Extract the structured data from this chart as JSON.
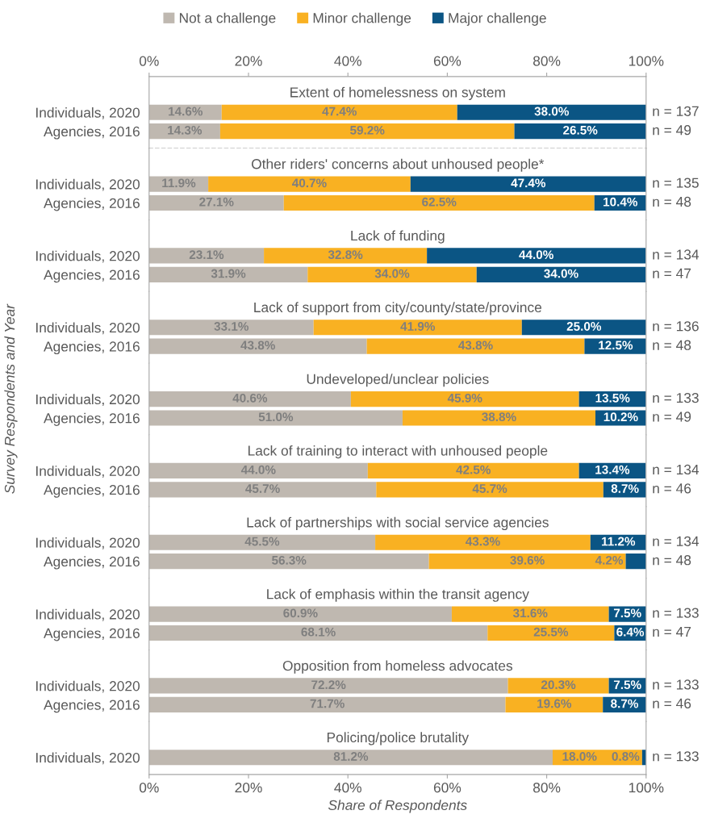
{
  "chart_data": [
    {
      "type": "bar",
      "orientation": "horizontal",
      "stacked": true,
      "title": "Extent of homelessness on system",
      "categories": [
        "Individuals, 2020",
        "Agencies, 2016"
      ],
      "xlim": [
        0,
        100
      ],
      "x2lim": [
        0,
        100
      ],
      "x2ticks": [
        {
          "value": 0,
          "label": "0%"
        },
        {
          "value": 20,
          "label": "20%"
        },
        {
          "value": 40,
          "label": "40%"
        },
        {
          "value": 60,
          "label": "60%"
        },
        {
          "value": 80,
          "label": "80%"
        },
        {
          "value": 100,
          "label": "100%"
        }
      ],
      "tick_labels": "y",
      "legend": "top",
      "annotations": [
        "n = 137",
        "n = 49"
      ],
      "series": [
        {
          "name": "Not a challenge",
          "color": "#bfb8b0",
          "values": [
            14.6,
            14.3
          ],
          "value_labels": [
            "14.6%",
            "14.3%"
          ]
        },
        {
          "name": "Minor challenge",
          "color": "#f9b122",
          "values": [
            47.4,
            59.2
          ],
          "value_labels": [
            "47.4%",
            "59.2%"
          ]
        },
        {
          "name": "Major challenge",
          "color": "#0b5584",
          "values": [
            38.0,
            26.5
          ],
          "value_labels": [
            "38.0%",
            "26.5%"
          ]
        }
      ]
    },
    {
      "type": "bar",
      "orientation": "horizontal",
      "stacked": true,
      "title": "Other riders' concerns about unhoused people*",
      "categories": [
        "Individuals, 2020",
        "Agencies, 2016"
      ],
      "xlim": [
        0,
        100
      ],
      "tick_labels": "y",
      "annotations": [
        "n = 135",
        "n = 48"
      ],
      "series": [
        {
          "color": "#bfb8b0",
          "values": [
            11.9,
            27.1
          ],
          "value_labels": [
            "11.9%",
            "27.1%"
          ]
        },
        {
          "color": "#f9b122",
          "values": [
            40.7,
            62.5
          ],
          "value_labels": [
            "40.7%",
            "62.5%"
          ]
        },
        {
          "color": "#0b5584",
          "values": [
            47.4,
            10.4
          ],
          "value_labels": [
            "47.4%",
            "10.4%"
          ]
        }
      ]
    },
    {
      "type": "bar",
      "orientation": "horizontal",
      "stacked": true,
      "title": "Lack of funding",
      "categories": [
        "Individuals, 2020",
        "Agencies, 2016"
      ],
      "xlim": [
        0,
        100
      ],
      "tick_labels": "y",
      "annotations": [
        "n = 134",
        "n = 47"
      ],
      "series": [
        {
          "color": "#bfb8b0",
          "values": [
            23.1,
            31.9
          ],
          "value_labels": [
            "23.1%",
            "31.9%"
          ]
        },
        {
          "color": "#f9b122",
          "values": [
            32.8,
            34.0
          ],
          "value_labels": [
            "32.8%",
            "34.0%"
          ]
        },
        {
          "color": "#0b5584",
          "values": [
            44.0,
            34.0
          ],
          "value_labels": [
            "44.0%",
            "34.0%"
          ]
        }
      ]
    },
    {
      "type": "bar",
      "orientation": "horizontal",
      "stacked": true,
      "title": "Lack of support from city/county/state/province",
      "categories": [
        "Individuals, 2020",
        "Agencies, 2016"
      ],
      "xlim": [
        0,
        100
      ],
      "tick_labels": "y",
      "annotations": [
        "n = 136",
        "n = 48"
      ],
      "series": [
        {
          "color": "#bfb8b0",
          "values": [
            33.1,
            43.8
          ],
          "value_labels": [
            "33.1%",
            "43.8%"
          ]
        },
        {
          "color": "#f9b122",
          "values": [
            41.9,
            43.8
          ],
          "value_labels": [
            "41.9%",
            "43.8%"
          ]
        },
        {
          "color": "#0b5584",
          "values": [
            25.0,
            12.5
          ],
          "value_labels": [
            "25.0%",
            "12.5%"
          ]
        }
      ]
    },
    {
      "type": "bar",
      "orientation": "horizontal",
      "stacked": true,
      "title": "Undeveloped/unclear policies",
      "ylabel": "Survey Respondents and Year",
      "categories": [
        "Individuals, 2020",
        "Agencies, 2016"
      ],
      "xlim": [
        0,
        100
      ],
      "tick_labels": "y",
      "annotations": [
        "n = 133",
        "n = 49"
      ],
      "series": [
        {
          "color": "#bfb8b0",
          "values": [
            40.6,
            51.0
          ],
          "value_labels": [
            "40.6%",
            "51.0%"
          ]
        },
        {
          "color": "#f9b122",
          "values": [
            45.9,
            38.8
          ],
          "value_labels": [
            "45.9%",
            "38.8%"
          ]
        },
        {
          "color": "#0b5584",
          "values": [
            13.5,
            10.2
          ],
          "value_labels": [
            "13.5%",
            "10.2%"
          ]
        }
      ]
    },
    {
      "type": "bar",
      "orientation": "horizontal",
      "stacked": true,
      "title": "Lack of training to interact with unhoused people",
      "categories": [
        "Individuals, 2020",
        "Agencies, 2016"
      ],
      "xlim": [
        0,
        100
      ],
      "tick_labels": "y",
      "annotations": [
        "n = 134",
        "n = 46"
      ],
      "series": [
        {
          "color": "#bfb8b0",
          "values": [
            44.0,
            45.7
          ],
          "value_labels": [
            "44.0%",
            "45.7%"
          ]
        },
        {
          "color": "#f9b122",
          "values": [
            42.5,
            45.7
          ],
          "value_labels": [
            "42.5%",
            "45.7%"
          ]
        },
        {
          "color": "#0b5584",
          "values": [
            13.4,
            8.7
          ],
          "value_labels": [
            "13.4%",
            "8.7%"
          ]
        }
      ]
    },
    {
      "type": "bar",
      "orientation": "horizontal",
      "stacked": true,
      "title": "Lack of partnerships with social service agencies",
      "categories": [
        "Individuals, 2020",
        "Agencies, 2016"
      ],
      "xlim": [
        0,
        100
      ],
      "tick_labels": "y",
      "annotations": [
        "n = 134",
        "n = 48"
      ],
      "series": [
        {
          "color": "#bfb8b0",
          "values": [
            45.5,
            56.3
          ],
          "value_labels": [
            "45.5%",
            "56.3%"
          ]
        },
        {
          "color": "#f9b122",
          "values": [
            43.3,
            39.6
          ],
          "value_labels": [
            "43.3%",
            "39.6%"
          ]
        },
        {
          "color": "#0b5584",
          "values": [
            11.2,
            4.2
          ],
          "value_labels": [
            "11.2%",
            "4.2%"
          ]
        }
      ]
    },
    {
      "type": "bar",
      "orientation": "horizontal",
      "stacked": true,
      "title": "Lack of emphasis within the transit agency",
      "categories": [
        "Individuals, 2020",
        "Agencies, 2016"
      ],
      "xlim": [
        0,
        100
      ],
      "tick_labels": "y",
      "annotations": [
        "n = 133",
        "n = 47"
      ],
      "series": [
        {
          "color": "#bfb8b0",
          "values": [
            60.9,
            68.1
          ],
          "value_labels": [
            "60.9%",
            "68.1%"
          ]
        },
        {
          "color": "#f9b122",
          "values": [
            31.6,
            25.5
          ],
          "value_labels": [
            "31.6%",
            "25.5%"
          ]
        },
        {
          "color": "#0b5584",
          "values": [
            7.5,
            6.4
          ],
          "value_labels": [
            "7.5%",
            "6.4%"
          ]
        }
      ]
    },
    {
      "type": "bar",
      "orientation": "horizontal",
      "stacked": true,
      "title": "Opposition from homeless advocates",
      "categories": [
        "Individuals, 2020",
        "Agencies, 2016"
      ],
      "xlim": [
        0,
        100
      ],
      "tick_labels": "y",
      "annotations": [
        "n = 133",
        "n = 46"
      ],
      "series": [
        {
          "color": "#bfb8b0",
          "values": [
            72.2,
            71.7
          ],
          "value_labels": [
            "72.2%",
            "71.7%"
          ]
        },
        {
          "color": "#f9b122",
          "values": [
            20.3,
            19.6
          ],
          "value_labels": [
            "20.3%",
            "19.6%"
          ]
        },
        {
          "color": "#0b5584",
          "values": [
            7.5,
            8.7
          ],
          "value_labels": [
            "7.5%",
            "8.7%"
          ]
        }
      ]
    },
    {
      "type": "bar",
      "orientation": "horizontal",
      "stacked": true,
      "title": "Policing/police brutality",
      "xlabel": "Share of Respondents",
      "categories": [
        "Individuals, 2020"
      ],
      "xlim": [
        0,
        100
      ],
      "xticks": [
        {
          "value": 0,
          "label": "0%"
        },
        {
          "value": 20,
          "label": "20%"
        },
        {
          "value": 40,
          "label": "40%"
        },
        {
          "value": 60,
          "label": "60%"
        },
        {
          "value": 80,
          "label": "80%"
        },
        {
          "value": 100,
          "label": "100%"
        }
      ],
      "annotations": [
        "n = 133"
      ],
      "series": [
        {
          "color": "#bfb8b0",
          "values": [
            81.2
          ],
          "value_labels": [
            "81.2%"
          ]
        },
        {
          "color": "#f9b122",
          "values": [
            18.0
          ],
          "value_labels": [
            "18.0%"
          ]
        },
        {
          "color": "#0b5584",
          "values": [
            0.8
          ],
          "value_labels": [
            "0.8%"
          ]
        }
      ]
    }
  ]
}
